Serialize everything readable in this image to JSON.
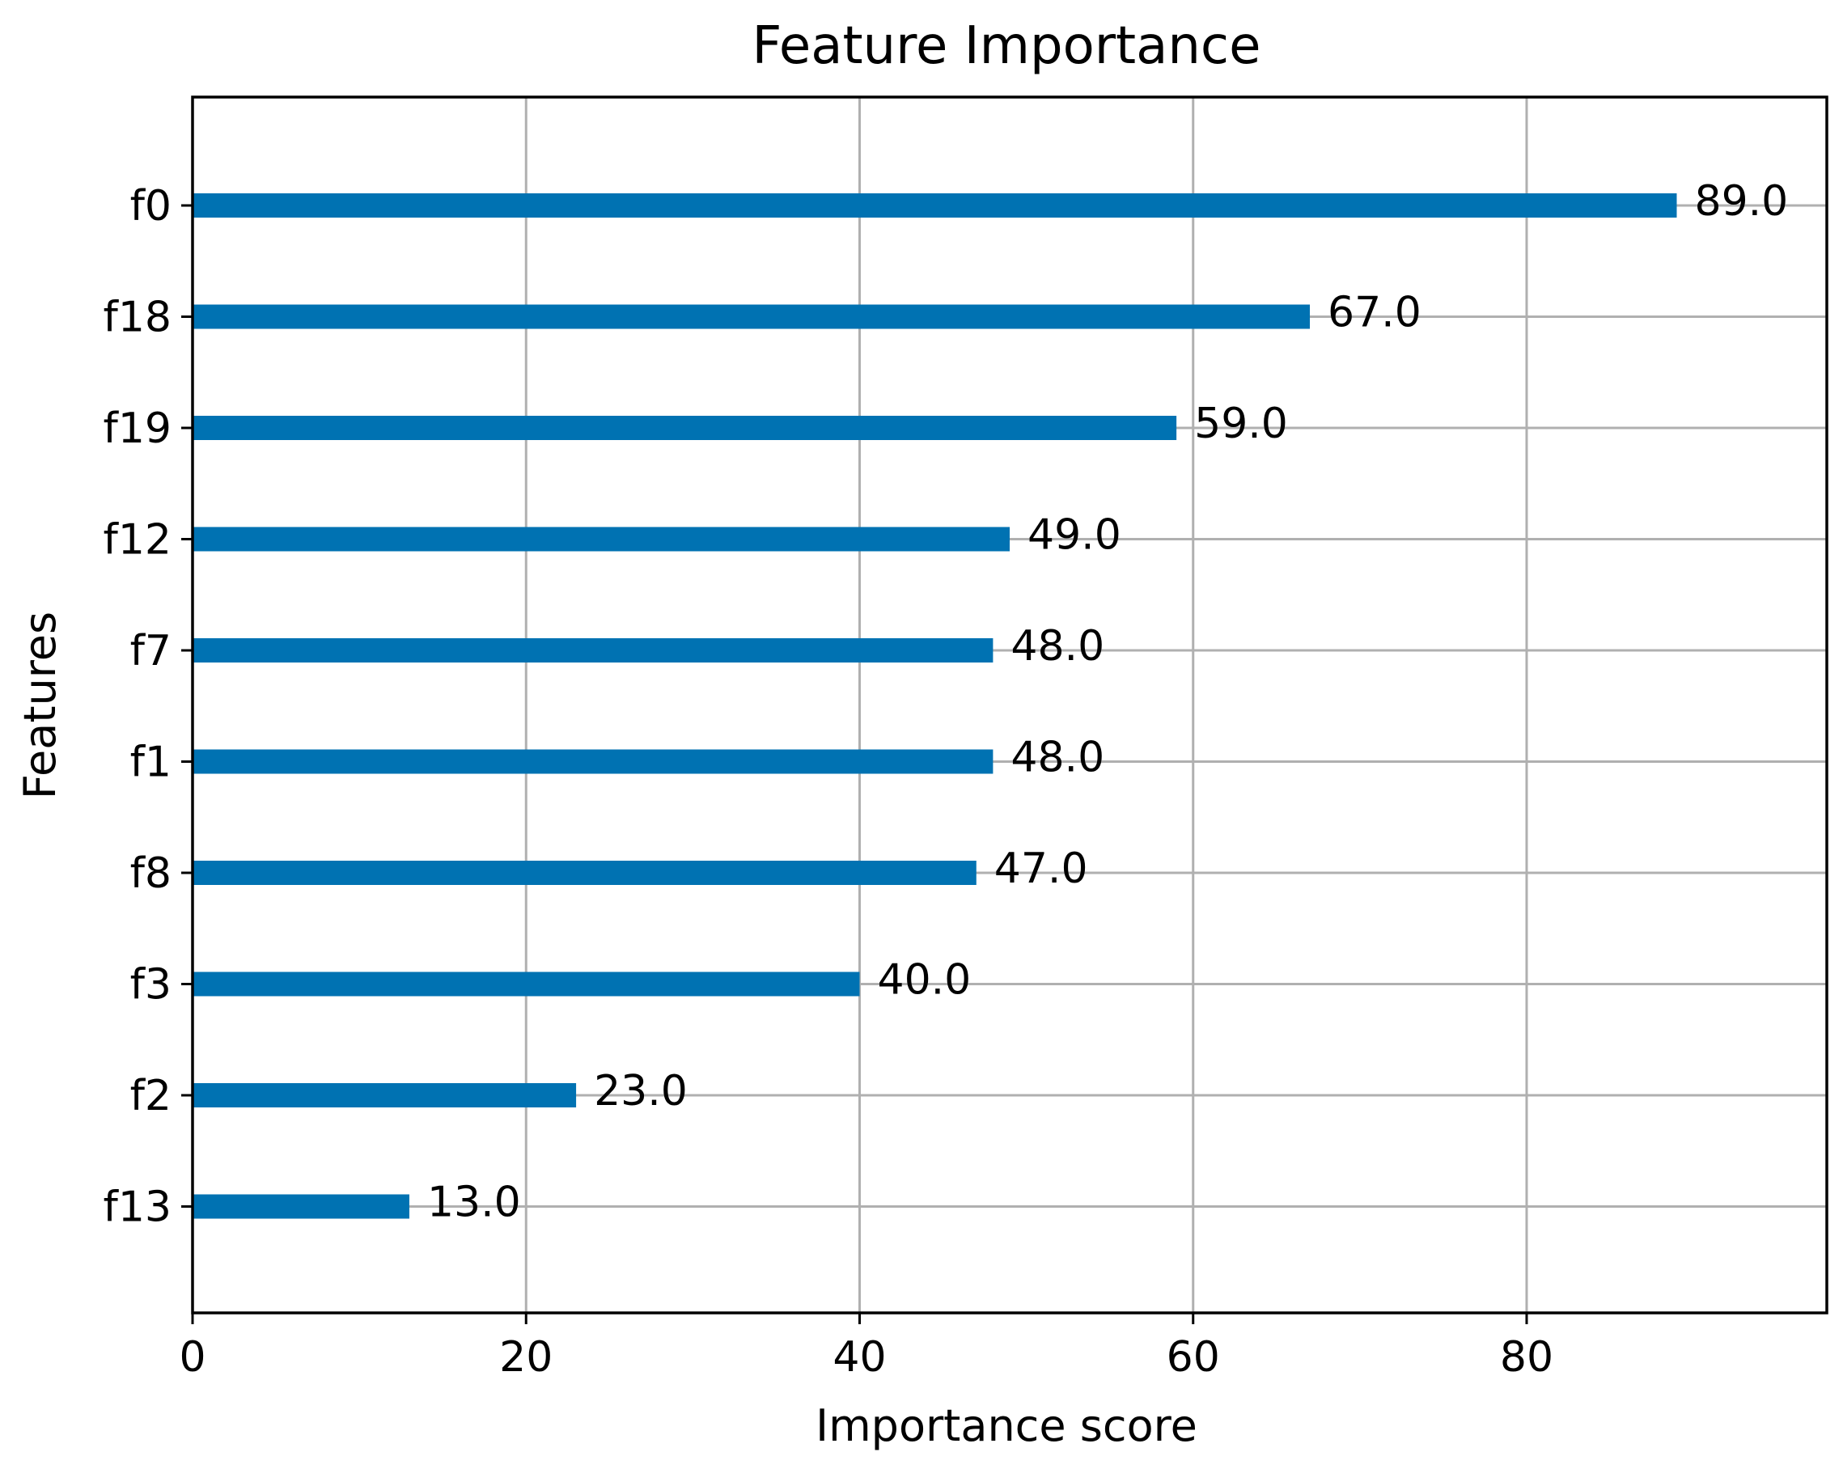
{
  "chart_data": {
    "type": "bar",
    "orientation": "horizontal",
    "title": "Feature Importance",
    "xlabel": "Importance score",
    "ylabel": "Features",
    "categories": [
      "f0",
      "f18",
      "f19",
      "f12",
      "f7",
      "f1",
      "f8",
      "f3",
      "f2",
      "f13"
    ],
    "values": [
      89.0,
      67.0,
      59.0,
      49.0,
      48.0,
      48.0,
      47.0,
      40.0,
      23.0,
      13.0
    ],
    "value_labels": [
      "89.0",
      "67.0",
      "59.0",
      "49.0",
      "48.0",
      "48.0",
      "47.0",
      "40.0",
      "23.0",
      "13.0"
    ],
    "xlim": [
      0,
      98
    ],
    "xticks": [
      0,
      20,
      40,
      60,
      80
    ],
    "grid": true,
    "bar_color": "#0072b2",
    "grid_color": "#b0b0b0"
  }
}
